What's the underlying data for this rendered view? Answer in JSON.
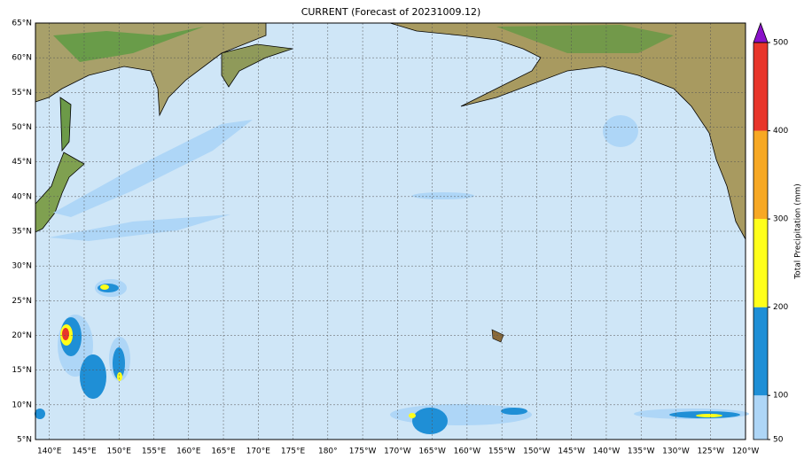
{
  "title": "CURRENT (Forecast of 20231009.12)",
  "map": {
    "lat_labels": [
      "65°N",
      "60°N",
      "55°N",
      "50°N",
      "45°N",
      "40°N",
      "35°N",
      "30°N",
      "25°N",
      "20°N",
      "15°N",
      "10°N",
      "5°N"
    ],
    "lon_labels": [
      "140°E",
      "145°E",
      "150°E",
      "155°E",
      "160°E",
      "165°E",
      "170°E",
      "175°E",
      "180°",
      "175°W",
      "170°W",
      "165°W",
      "160°W",
      "155°W",
      "150°W",
      "145°W",
      "140°W",
      "135°W",
      "130°W",
      "125°W",
      "120°W"
    ]
  },
  "colorbar": {
    "title": "Total Precipitation (mm)",
    "ticks": [
      50,
      100,
      200,
      300,
      400,
      500
    ],
    "colors": [
      "#aed6f7",
      "#1f8fd6",
      "#ffff1a",
      "#f7a823",
      "#e8352a"
    ],
    "extend_color": "#8a12c9"
  }
}
